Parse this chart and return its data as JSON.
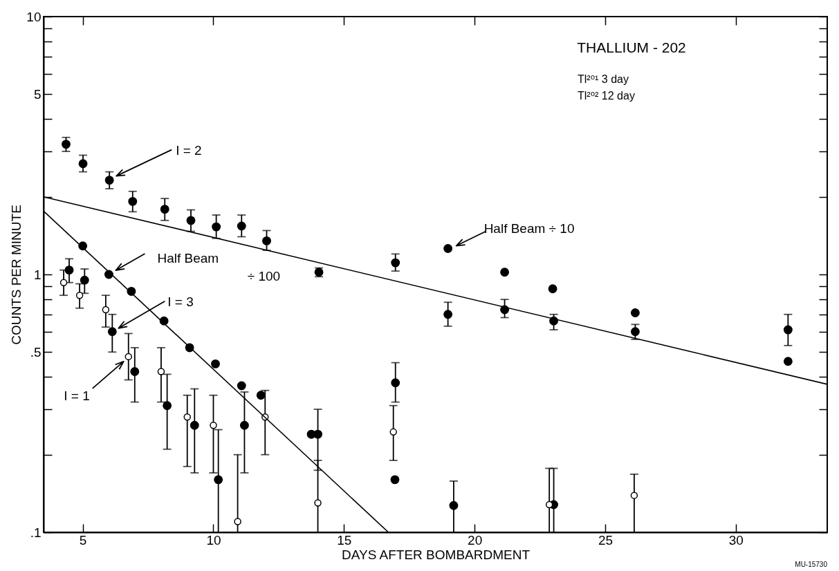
{
  "chart_data": {
    "type": "scatter",
    "title": "THALLIUM - 202",
    "xlabel": "DAYS AFTER BOMBARDMENT",
    "ylabel": "COUNTS PER MINUTE",
    "annotations": [
      "Tl²⁰¹ 3 day",
      "Tl²⁰² 12 day",
      "MU-15730"
    ],
    "xlim": [
      3.5,
      33.5
    ],
    "xticks": [
      5,
      10,
      15,
      20,
      25,
      30
    ],
    "ylim": [
      0.1,
      10
    ],
    "log": "y",
    "yticks": [
      {
        "value": 0.1,
        "label": ".1"
      },
      {
        "value": 0.2,
        "label": null
      },
      {
        "value": 0.3,
        "label": null
      },
      {
        "value": 0.4,
        "label": null
      },
      {
        "value": 0.5,
        "label": ".5"
      },
      {
        "value": 0.6,
        "label": null
      },
      {
        "value": 0.7,
        "label": null
      },
      {
        "value": 0.8,
        "label": null
      },
      {
        "value": 0.9,
        "label": null
      },
      1,
      {
        "value": 2,
        "label": null
      },
      {
        "value": 3,
        "label": null
      },
      {
        "value": 4,
        "label": null
      },
      5,
      {
        "value": 6,
        "label": null
      },
      {
        "value": 7,
        "label": null
      },
      {
        "value": 8,
        "label": null
      },
      {
        "value": 9,
        "label": null
      },
      10
    ],
    "grid": false,
    "marker": "circle",
    "series": [
      {
        "name": "I = 2",
        "color": "#000000",
        "x": [
          4.36,
          5.01,
          6.02,
          6.91,
          8.14,
          9.14,
          10.11,
          11.08,
          12.04,
          14.04,
          16.97,
          18.98,
          21.15,
          23.03,
          26.15,
          32.0
        ],
        "values": [
          3.2,
          2.69,
          2.32,
          1.92,
          1.79,
          1.62,
          1.53,
          1.54,
          1.35,
          1.02,
          1.11,
          0.7,
          0.73,
          0.66,
          0.6,
          0.61
        ],
        "errors": [
          [
            3.0,
            3.4
          ],
          [
            2.5,
            2.9
          ],
          [
            2.15,
            2.5
          ],
          [
            1.75,
            2.1
          ],
          [
            1.62,
            1.97
          ],
          [
            1.47,
            1.78
          ],
          [
            1.38,
            1.7
          ],
          [
            1.4,
            1.7
          ],
          [
            1.24,
            1.48
          ],
          [
            0.98,
            1.06
          ],
          [
            1.03,
            1.2
          ],
          [
            0.63,
            0.78
          ],
          [
            0.68,
            0.8
          ],
          [
            0.61,
            0.7
          ],
          [
            0.56,
            0.64
          ],
          [
            0.53,
            0.7
          ]
        ]
      },
      {
        "name": "Half Beam ÷ 10",
        "color": "#000000",
        "x": [
          18.98,
          21.15,
          22.99,
          26.15,
          32.0
        ],
        "values": [
          1.26,
          1.02,
          0.88,
          0.71,
          0.46
        ]
      },
      {
        "name": "Half Beam ÷ 100",
        "color": "#000000",
        "x": [
          5.0,
          6.0,
          6.86,
          8.11,
          9.09,
          10.08,
          11.08,
          11.82,
          13.75,
          16.95
        ],
        "values": [
          1.29,
          1.0,
          0.86,
          0.66,
          0.52,
          0.45,
          0.37,
          0.34,
          0.24,
          0.16
        ]
      },
      {
        "name": "I = 3",
        "color": "#000000",
        "x": [
          4.48,
          5.07,
          6.13,
          6.99,
          8.23,
          9.28,
          10.19,
          11.19,
          14.0,
          16.97,
          19.2,
          23.03
        ],
        "values": [
          1.04,
          0.95,
          0.6,
          0.42,
          0.31,
          0.26,
          0.16,
          0.26,
          0.24,
          0.38,
          0.127,
          0.128
        ],
        "errors": [
          [
            0.93,
            1.15
          ],
          [
            0.845,
            1.05
          ],
          [
            0.5,
            0.7
          ],
          [
            0.32,
            0.52
          ],
          [
            0.21,
            0.41
          ],
          [
            0.17,
            0.36
          ],
          [
            0.1,
            0.25
          ],
          [
            0.17,
            0.35
          ],
          [
            0.174,
            0.3
          ],
          [
            0.32,
            0.455
          ],
          [
            0.1,
            0.158
          ],
          [
            0.1,
            0.177
          ]
        ]
      },
      {
        "name": "I = 1",
        "color": "#000000",
        "marker": "circle-open",
        "x": [
          4.27,
          4.88,
          5.88,
          6.75,
          8.0,
          9.0,
          10.0,
          10.93,
          11.98,
          14.0,
          16.89,
          22.86,
          26.11
        ],
        "values": [
          0.93,
          0.83,
          0.73,
          0.48,
          0.42,
          0.28,
          0.26,
          0.11,
          0.28,
          0.13,
          0.245,
          0.128,
          0.139
        ],
        "errors": [
          [
            0.83,
            1.04
          ],
          [
            0.74,
            0.92
          ],
          [
            0.625,
            0.83
          ],
          [
            0.39,
            0.59
          ],
          [
            0.32,
            0.52
          ],
          [
            0.18,
            0.34
          ],
          [
            0.17,
            0.34
          ],
          [
            0.1,
            0.2
          ],
          [
            0.2,
            0.355
          ],
          [
            0.1,
            0.19
          ],
          [
            0.19,
            0.31
          ],
          [
            0.1,
            0.177
          ],
          [
            0.1,
            0.168
          ]
        ]
      },
      {
        "type": "line",
        "color": "#000000",
        "line_style": "solid",
        "marker": "none",
        "x": [
          3.5,
          33.5
        ],
        "values": [
          2.0,
          0.375
        ]
      },
      {
        "type": "line",
        "color": "#000000",
        "line_style": "solid",
        "marker": "none",
        "x": [
          3.5,
          16.7
        ],
        "values": [
          1.76,
          0.1
        ]
      }
    ]
  }
}
